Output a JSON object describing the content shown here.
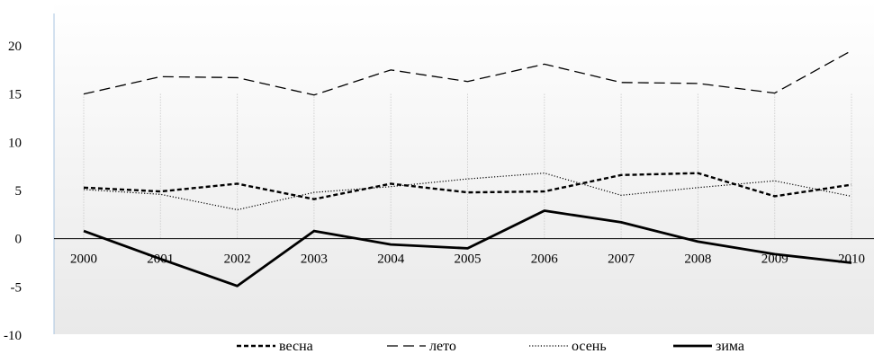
{
  "chart_data": {
    "type": "line",
    "title": "",
    "xlabel": "",
    "ylabel": "",
    "categories": [
      "2000",
      "2001",
      "2002",
      "2003",
      "2004",
      "2005",
      "2006",
      "2007",
      "2008",
      "2009",
      "2010"
    ],
    "ylim": [
      -10,
      20
    ],
    "yticks": [
      20,
      15,
      10,
      5,
      0,
      -5,
      -10
    ],
    "grid": "vertical dotted",
    "legend_position": "bottom",
    "series": [
      {
        "name": "весна",
        "style": "short-dash",
        "color": "#000000",
        "values": [
          5.3,
          4.9,
          5.7,
          4.1,
          5.7,
          4.8,
          4.9,
          6.6,
          6.8,
          4.4,
          5.6
        ]
      },
      {
        "name": "лето",
        "style": "long-dash",
        "color": "#000000",
        "values": [
          15.0,
          16.8,
          16.7,
          14.9,
          17.5,
          16.3,
          18.1,
          16.2,
          16.1,
          15.1,
          19.5
        ]
      },
      {
        "name": "осень",
        "style": "dotted",
        "color": "#000000",
        "values": [
          5.1,
          4.6,
          3.0,
          4.8,
          5.4,
          6.2,
          6.8,
          4.5,
          5.3,
          6.0,
          4.4
        ]
      },
      {
        "name": "зима",
        "style": "solid",
        "color": "#000000",
        "values": [
          0.8,
          -2.1,
          -4.9,
          0.8,
          -0.6,
          -1.0,
          2.9,
          1.7,
          -0.3,
          -1.6,
          -2.5
        ]
      }
    ]
  }
}
